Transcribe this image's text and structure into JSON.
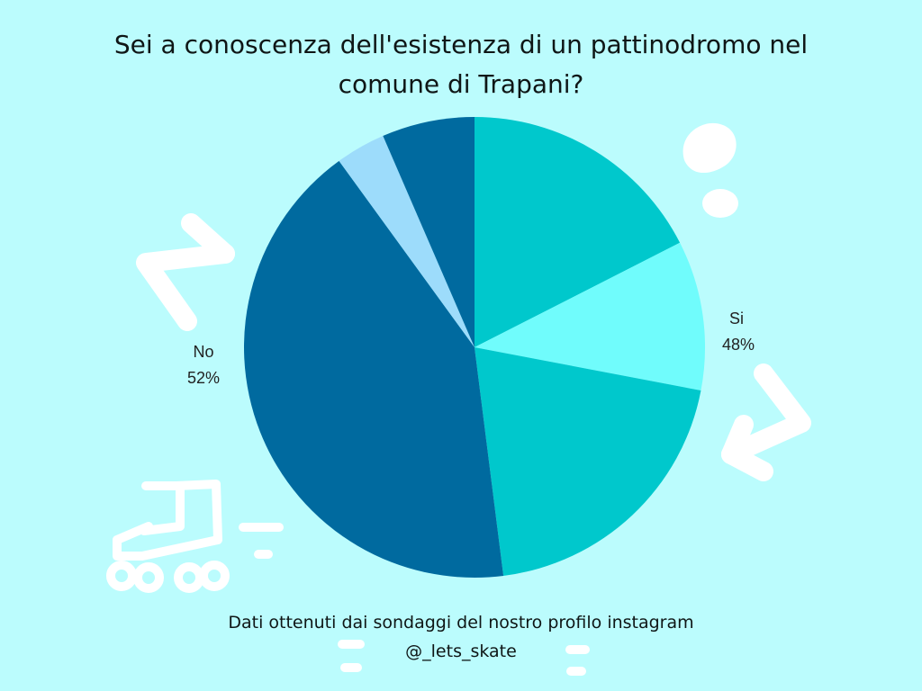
{
  "title_lines": [
    "Sei a conoscenza dell'esistenza di un pattinodromo nel",
    "comune di Trapani?"
  ],
  "footer_lines": [
    "Dati ottenuti dai sondaggi del nostro profilo instagram",
    "@_lets_skate"
  ],
  "colors": {
    "background": "#bbfcfd",
    "si_dark": "#00c8cc",
    "si_light": "#70fcfc",
    "no_dark": "#006a9f",
    "no_light": "#9ddcfb",
    "doodle": "#ffffff"
  },
  "icons": [
    "arrow-doodle-icon",
    "arrow-doodle-icon",
    "footprint-doodle-icon",
    "roller-skate-doodle-icon",
    "dash-doodle-icon"
  ],
  "chart_data": {
    "type": "pie",
    "start_angle_deg": 0,
    "direction": "clockwise",
    "segments": [
      {
        "group": "Si",
        "value": 17.5,
        "color": "#00c8cc"
      },
      {
        "group": "Si",
        "value": 10.5,
        "color": "#70fcfc"
      },
      {
        "group": "Si",
        "value": 20.0,
        "color": "#00c8cc"
      },
      {
        "group": "No",
        "value": 42.0,
        "color": "#006a9f"
      },
      {
        "group": "No",
        "value": 3.5,
        "color": "#9ddcfb"
      },
      {
        "group": "No",
        "value": 6.5,
        "color": "#006a9f"
      }
    ],
    "labels": [
      {
        "name": "Si",
        "value": "48%"
      },
      {
        "name": "No",
        "value": "52%"
      }
    ]
  }
}
